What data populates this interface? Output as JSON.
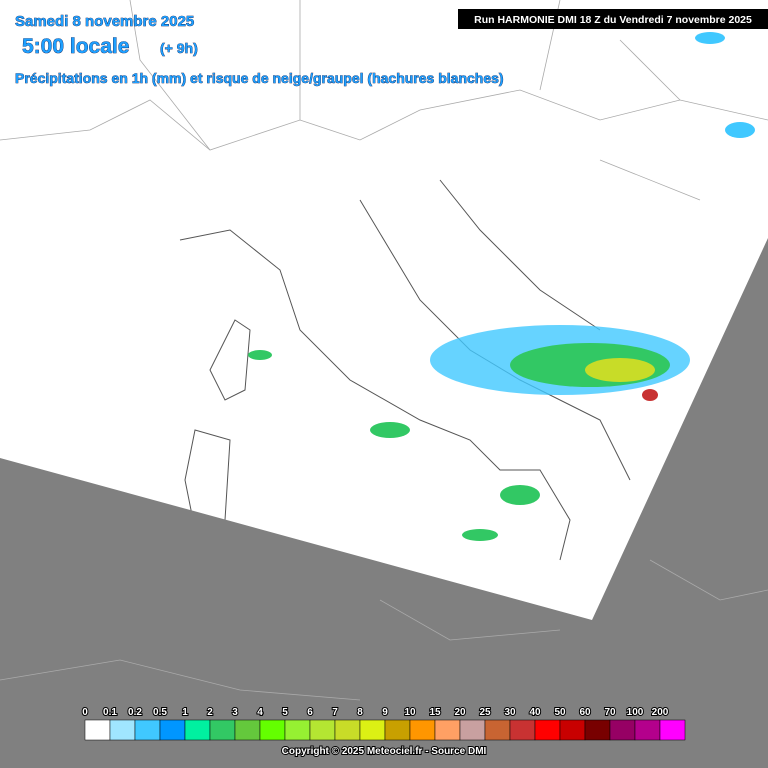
{
  "header": {
    "date": "Samedi 8 novembre 2025",
    "time": "5:00 locale",
    "offset": "(+ 9h)",
    "subtitle": "Précipitations en 1h (mm) et risque de neige/graupel (hachures blanches)",
    "run": "Run HARMONIE DMI 18 Z du Vendredi 7 novembre 2025"
  },
  "legend": {
    "labels": [
      "0",
      "0.1",
      "0.2",
      "0.5",
      "1",
      "2",
      "3",
      "4",
      "5",
      "6",
      "7",
      "8",
      "9",
      "10",
      "15",
      "20",
      "25",
      "30",
      "40",
      "50",
      "60",
      "70",
      "100",
      "200"
    ],
    "colors": [
      "#ffffff",
      "#a0e6ff",
      "#40c8ff",
      "#0096ff",
      "#00f0a0",
      "#32c864",
      "#64c83c",
      "#64ff00",
      "#96f032",
      "#b4e632",
      "#c8dc28",
      "#dcf014",
      "#c8a000",
      "#ff9600",
      "#ffa064",
      "#c8a0a0",
      "#c86432",
      "#c83232",
      "#ff0000",
      "#c80000",
      "#780000",
      "#960064",
      "#b4008c",
      "#ff00ff"
    ]
  },
  "footer": "Copyright © 2025 Meteociel.fr - Source DMI"
}
